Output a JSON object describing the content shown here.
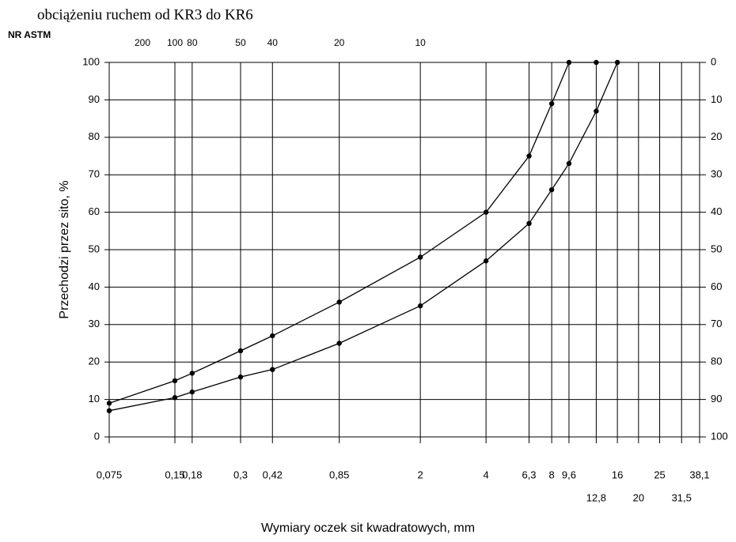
{
  "chart_data": {
    "type": "line",
    "title": "obciążeniu ruchem od KR3 do KR6",
    "x2_axis_title": "NR ASTM",
    "ylabel": "Przechodzi przez sito, %",
    "xlabel": "Wymiary oczek sit kwadratowych, mm",
    "xscale": "log",
    "grid": true,
    "xlim": [
      0.075,
      38.1
    ],
    "ylim": [
      0,
      100
    ],
    "y2lim": [
      100,
      0
    ],
    "xticks": [
      {
        "value": 0.075,
        "label": "0,075"
      },
      {
        "value": 0.15,
        "label": "0,15"
      },
      {
        "value": 0.18,
        "label": "0,18"
      },
      {
        "value": 0.3,
        "label": "0,3"
      },
      {
        "value": 0.42,
        "label": "0,42"
      },
      {
        "value": 0.85,
        "label": "0,85"
      },
      2,
      4,
      {
        "value": 6.3,
        "label": "6,3"
      },
      8,
      {
        "value": 9.6,
        "label": "9,6"
      },
      {
        "value": 12.8,
        "label": "12,8"
      },
      16,
      20,
      25,
      {
        "value": 31.5,
        "label": "31,5"
      },
      {
        "value": 38.1,
        "label": "38,1"
      }
    ],
    "x2ticks": [
      {
        "value": 0.075,
        "label": "200"
      },
      {
        "value": 0.15,
        "label": "100"
      },
      {
        "value": 0.18,
        "label": "80"
      },
      {
        "value": 0.3,
        "label": "50"
      },
      {
        "value": 0.42,
        "label": "40"
      },
      {
        "value": 0.85,
        "label": "20"
      },
      {
        "value": 2,
        "label": "10"
      }
    ],
    "yticks": [
      0,
      10,
      20,
      30,
      40,
      50,
      60,
      70,
      80,
      90,
      100
    ],
    "y2ticks": [
      0,
      10,
      20,
      30,
      40,
      50,
      60,
      70,
      80,
      90,
      100
    ],
    "series": [
      {
        "color": "#000000",
        "x": [
          0.075,
          0.15,
          0.18,
          0.3,
          0.42,
          0.85,
          2,
          4,
          6.3,
          8,
          9.6,
          12.8
        ],
        "values": [
          9,
          15,
          17,
          23,
          27,
          36,
          48,
          60,
          75,
          89,
          100,
          100
        ]
      },
      {
        "color": "#000000",
        "x": [
          0.075,
          0.15,
          0.18,
          0.3,
          0.42,
          0.85,
          2,
          4,
          6.3,
          8,
          9.6,
          12.8,
          16
        ],
        "values": [
          7,
          10.5,
          12,
          16,
          18,
          25,
          35,
          47,
          57,
          66,
          73,
          87,
          100
        ]
      }
    ]
  }
}
